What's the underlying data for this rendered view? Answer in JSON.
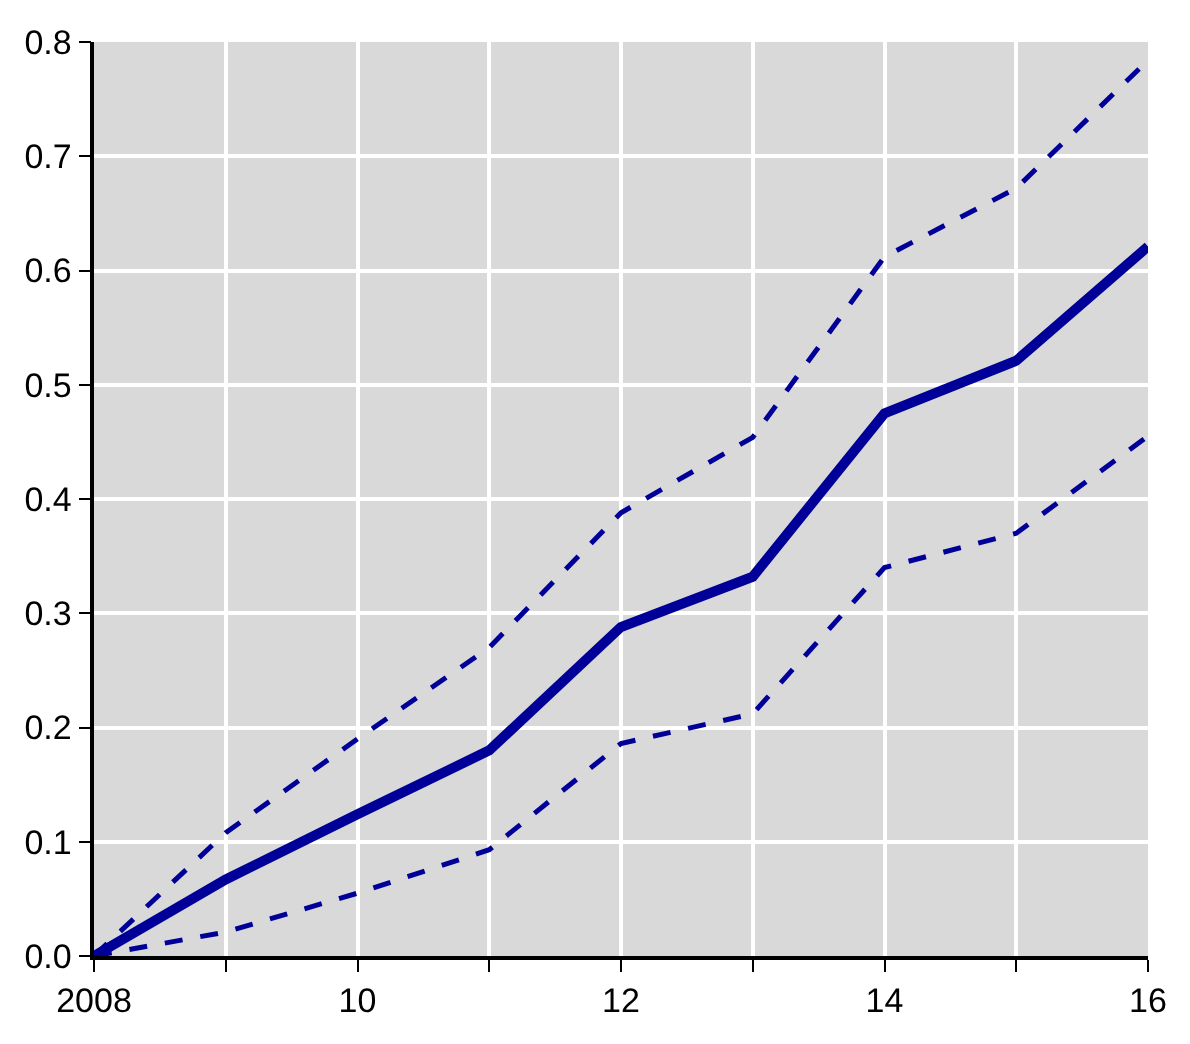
{
  "chart_data": {
    "type": "line",
    "x": [
      2008,
      2009,
      2010,
      2011,
      2012,
      2013,
      2014,
      2015,
      2016
    ],
    "series": [
      {
        "color": "#000099",
        "line_style": "solid",
        "values": [
          0,
          0.067,
          0.124,
          0.18,
          0.288,
          0.332,
          0.475,
          0.521,
          0.621
        ]
      },
      {
        "color": "#000099",
        "line_style": "dashed",
        "values": [
          0,
          0.108,
          0.19,
          0.27,
          0.388,
          0.454,
          0.612,
          0.672,
          0.784
        ]
      },
      {
        "color": "#000099",
        "line_style": "dashed",
        "values": [
          0,
          0.021,
          0.055,
          0.093,
          0.186,
          0.212,
          0.34,
          0.37,
          0.455
        ]
      }
    ],
    "xlim": [
      2008,
      2016
    ],
    "xticks": [
      {
        "value": 2008,
        "label": "2008"
      },
      {
        "value": 2009,
        "label": null
      },
      {
        "value": 2010,
        "label": "10"
      },
      {
        "value": 2011,
        "label": null
      },
      {
        "value": 2012,
        "label": "12"
      },
      {
        "value": 2013,
        "label": null
      },
      {
        "value": 2014,
        "label": "14"
      },
      {
        "value": 2015,
        "label": null
      },
      {
        "value": 2016,
        "label": "16"
      }
    ],
    "ylim": [
      0,
      0.8
    ],
    "yticks": [
      {
        "value": 0,
        "label": "0.0"
      },
      {
        "value": 0.1,
        "label": "0.1"
      },
      {
        "value": 0.2,
        "label": "0.2"
      },
      {
        "value": 0.3,
        "label": "0.3"
      },
      {
        "value": 0.4,
        "label": "0.4"
      },
      {
        "value": 0.5,
        "label": "0.5"
      },
      {
        "value": 0.6,
        "label": "0.6"
      },
      {
        "value": 0.7,
        "label": "0.7"
      },
      {
        "value": 0.8,
        "label": "0.8"
      }
    ],
    "grid": true,
    "marker": "none"
  }
}
